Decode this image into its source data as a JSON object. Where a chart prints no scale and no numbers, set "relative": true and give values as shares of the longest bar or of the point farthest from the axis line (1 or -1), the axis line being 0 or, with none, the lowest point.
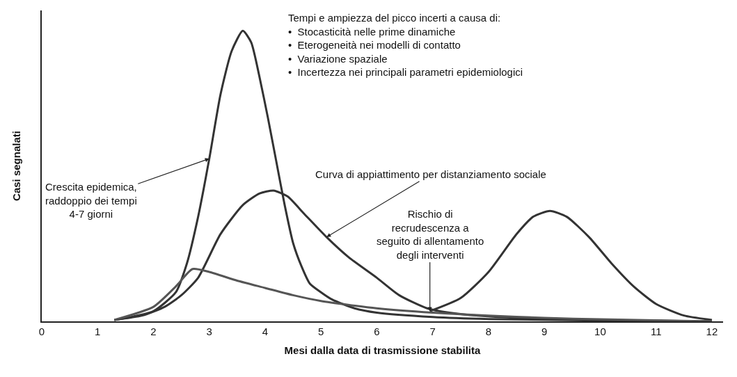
{
  "chart_data": {
    "type": "line",
    "relative": true,
    "xlabel": "Mesi dalla data di trasmissione stabilita",
    "ylabel": "Casi segnalati",
    "xlim": [
      0,
      12.2
    ],
    "xticks": [
      0,
      1,
      2,
      3,
      4,
      5,
      6,
      7,
      8,
      9,
      10,
      11,
      12
    ],
    "grid": false,
    "marker": "none",
    "line_style": "solid",
    "series": [
      {
        "color": "#333333",
        "x": [
          1.3,
          1.6,
          2.0,
          2.4,
          2.6,
          2.8,
          3.0,
          3.2,
          3.4,
          3.6,
          3.75,
          3.9,
          4.05,
          4.2,
          4.35,
          4.5,
          4.65,
          4.8,
          5.0,
          5.2,
          5.6,
          6.0,
          7.0,
          8.0,
          10.0,
          12.0
        ],
        "values": [
          0.005,
          0.015,
          0.035,
          0.1,
          0.2,
          0.36,
          0.56,
          0.78,
          0.93,
          1.0,
          0.96,
          0.84,
          0.7,
          0.55,
          0.4,
          0.27,
          0.19,
          0.13,
          0.1,
          0.075,
          0.045,
          0.03,
          0.015,
          0.008,
          0.003,
          0.0
        ]
      },
      {
        "color": "#333333",
        "x": [
          1.3,
          1.8,
          2.2,
          2.5,
          2.8,
          3.2,
          3.6,
          3.9,
          4.15,
          4.4,
          4.7,
          5.1,
          5.5,
          6.0,
          6.4,
          6.9,
          7.5,
          8.5,
          10.0,
          12.0
        ],
        "values": [
          0.005,
          0.02,
          0.05,
          0.09,
          0.15,
          0.3,
          0.4,
          0.44,
          0.45,
          0.43,
          0.37,
          0.29,
          0.22,
          0.15,
          0.09,
          0.045,
          0.025,
          0.012,
          0.005,
          0.0
        ]
      },
      {
        "color": "#333333",
        "x": [
          6.95,
          7.5,
          8.0,
          8.5,
          8.8,
          9.1,
          9.4,
          9.8,
          10.2,
          10.6,
          11.0,
          11.5,
          12.0
        ],
        "values": [
          0.035,
          0.08,
          0.17,
          0.3,
          0.36,
          0.38,
          0.36,
          0.29,
          0.2,
          0.12,
          0.06,
          0.02,
          0.005
        ]
      },
      {
        "color": "#555555",
        "x": [
          1.3,
          2.0,
          2.4,
          2.7,
          3.0,
          3.5,
          4.0,
          4.5,
          5.0,
          6.0,
          7.0,
          8.0,
          9.0,
          10.0,
          12.0
        ],
        "values": [
          0.005,
          0.05,
          0.12,
          0.18,
          0.17,
          0.14,
          0.115,
          0.09,
          0.07,
          0.045,
          0.03,
          0.02,
          0.012,
          0.007,
          0.0
        ]
      }
    ],
    "annotations": [
      "Tempi e ampiezza del picco incerti a causa di:\n•  Stocasticità nelle prime dinamiche\n•  Eterogeneità nei modelli di contatto\n•  Variazione spaziale\n•  Incertezza nei principali parametri epidemiologici",
      {
        "text": "Crescita epidemica,\nraddoppio dei tempi\n4-7 giorni",
        "x": 3.0,
        "y": 0.56
      },
      {
        "text": "Curva di appiattimento per distanziamento sociale",
        "x": 5.1,
        "y": 0.29
      },
      {
        "text": "Rischio di\nrecrudescenza a\nseguito di allentamento\ndegli interventi",
        "x": 6.95,
        "y": 0.035
      }
    ]
  }
}
